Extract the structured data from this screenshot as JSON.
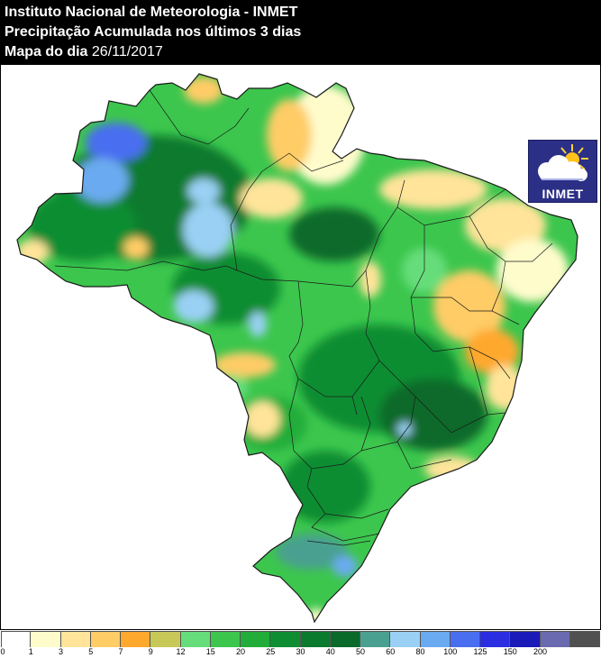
{
  "header": {
    "line1": "Instituto Nacional de Meteorologia - INMET",
    "line2": "Precipitação Acumulada nos últimos 3 dias",
    "line3_label": "Mapa do dia",
    "line3_date": "26/11/2017"
  },
  "logo": {
    "text": "INMET",
    "icon": "sun-cloud-icon"
  },
  "legend": {
    "bins": [
      {
        "label": "0",
        "color": "#ffffff"
      },
      {
        "label": "1",
        "color": "#fffccc"
      },
      {
        "label": "3",
        "color": "#ffe49a"
      },
      {
        "label": "5",
        "color": "#ffcc66"
      },
      {
        "label": "7",
        "color": "#ffa82e"
      },
      {
        "label": "9",
        "color": "#c8c858"
      },
      {
        "label": "12",
        "color": "#66dd7a"
      },
      {
        "label": "15",
        "color": "#3cc64d"
      },
      {
        "label": "20",
        "color": "#22ad3a"
      },
      {
        "label": "25",
        "color": "#0e8d32"
      },
      {
        "label": "30",
        "color": "#0a7a2e"
      },
      {
        "label": "40",
        "color": "#096a2a"
      },
      {
        "label": "50",
        "color": "#4aa090"
      },
      {
        "label": "60",
        "color": "#9ad0f4"
      },
      {
        "label": "80",
        "color": "#6aaaf0"
      },
      {
        "label": "100",
        "color": "#4a6ef0"
      },
      {
        "label": "125",
        "color": "#2a2ee0"
      },
      {
        "label": "150",
        "color": "#1a1ab8"
      },
      {
        "label": "200",
        "color": "#6a6ab0"
      },
      {
        "label": "",
        "color": "#505050"
      }
    ]
  }
}
